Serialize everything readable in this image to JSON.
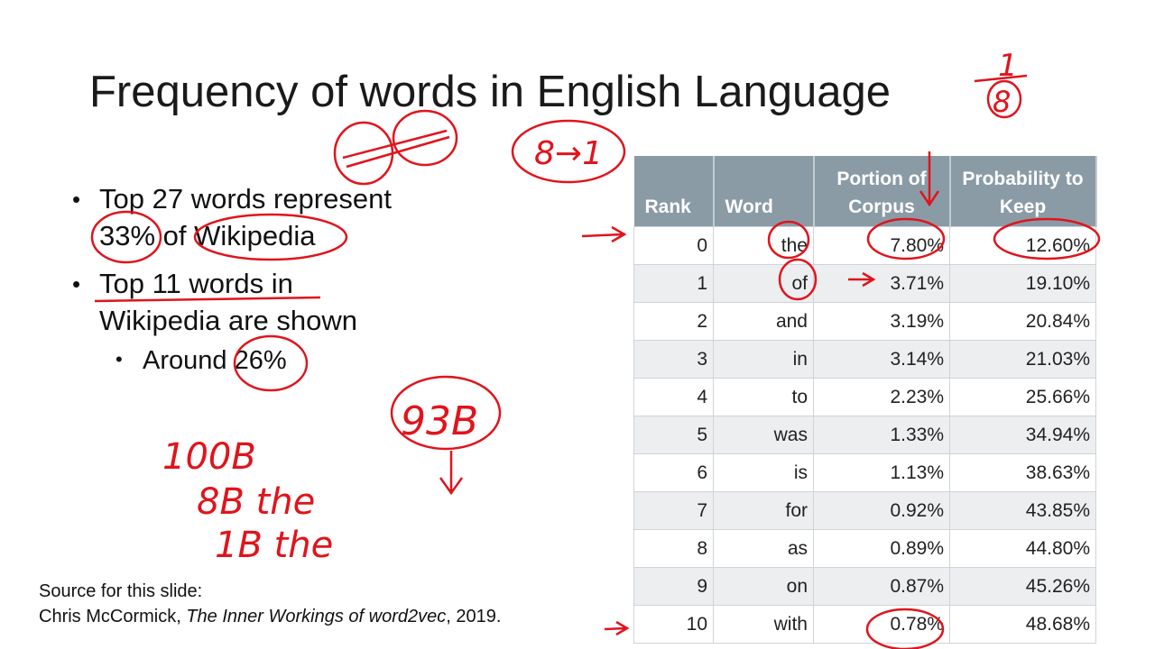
{
  "slide": {
    "title": "Frequency of words in English Language",
    "bullets": [
      {
        "lines": [
          "Top 27 words represent",
          "33% of Wikipedia"
        ]
      },
      {
        "lines": [
          "Top 11 words in",
          "Wikipedia are shown"
        ]
      }
    ],
    "sub_bullet": "Around 26%",
    "source": {
      "line1": "Source for this slide:",
      "author": "Chris McCormick, ",
      "work": "The Inner Workings of word2vec",
      "year": ", 2019."
    },
    "table": {
      "headers": [
        "Rank",
        "Word",
        "Portion of Corpus",
        "Probability to Keep"
      ],
      "rows": [
        [
          "0",
          "the",
          "7.80%",
          "12.60%"
        ],
        [
          "1",
          "of",
          "3.71%",
          "19.10%"
        ],
        [
          "2",
          "and",
          "3.19%",
          "20.84%"
        ],
        [
          "3",
          "in",
          "3.14%",
          "21.03%"
        ],
        [
          "4",
          "to",
          "2.23%",
          "25.66%"
        ],
        [
          "5",
          "was",
          "1.33%",
          "34.94%"
        ],
        [
          "6",
          "is",
          "1.13%",
          "38.63%"
        ],
        [
          "7",
          "for",
          "0.92%",
          "43.85%"
        ],
        [
          "8",
          "as",
          "0.89%",
          "44.80%"
        ],
        [
          "9",
          "on",
          "0.87%",
          "45.26%"
        ],
        [
          "10",
          "with",
          "0.78%",
          "48.68%"
        ]
      ]
    },
    "annotations": [
      "1",
      "8",
      "8→1",
      "100B",
      "8B the",
      "1B the",
      "93B"
    ]
  }
}
